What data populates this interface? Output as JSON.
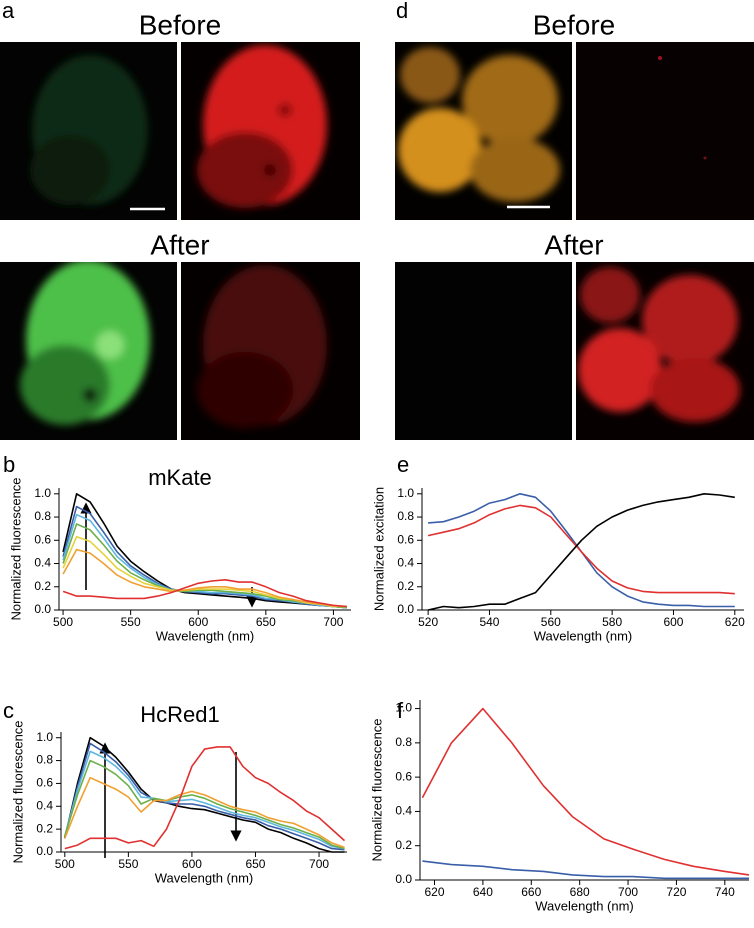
{
  "images": {
    "panel_a": "a",
    "panel_d": "d",
    "before_a": "Before",
    "after_a": "After",
    "before_d": "Before",
    "after_d": "After"
  },
  "chart_data": [
    {
      "type": "line",
      "panel_label": "b",
      "title": "mKate",
      "x_label": "Wavelength (nm)",
      "y_label": "Normalized fluorescence",
      "x": [
        500,
        510,
        520,
        530,
        540,
        550,
        560,
        570,
        580,
        590,
        600,
        610,
        620,
        630,
        640,
        650,
        660,
        670,
        680,
        690,
        700,
        710
      ],
      "series": [
        {
          "color": "#000000",
          "values": [
            0.5,
            1.0,
            0.93,
            0.75,
            0.55,
            0.42,
            0.33,
            0.25,
            0.18,
            0.15,
            0.14,
            0.13,
            0.12,
            0.11,
            0.1,
            0.08,
            0.07,
            0.06,
            0.05,
            0.04,
            0.03,
            0.02
          ]
        },
        {
          "color": "#3a5fa8",
          "values": [
            0.46,
            0.89,
            0.83,
            0.67,
            0.5,
            0.38,
            0.3,
            0.23,
            0.18,
            0.16,
            0.15,
            0.14,
            0.14,
            0.13,
            0.12,
            0.09,
            0.08,
            0.07,
            0.05,
            0.04,
            0.03,
            0.02
          ]
        },
        {
          "color": "#5fb7e0",
          "values": [
            0.43,
            0.82,
            0.77,
            0.62,
            0.46,
            0.36,
            0.28,
            0.22,
            0.17,
            0.16,
            0.16,
            0.15,
            0.15,
            0.14,
            0.13,
            0.1,
            0.09,
            0.07,
            0.06,
            0.04,
            0.03,
            0.02
          ]
        },
        {
          "color": "#6bb04a",
          "values": [
            0.4,
            0.74,
            0.69,
            0.56,
            0.42,
            0.32,
            0.26,
            0.21,
            0.17,
            0.16,
            0.17,
            0.17,
            0.16,
            0.15,
            0.14,
            0.12,
            0.09,
            0.08,
            0.06,
            0.05,
            0.03,
            0.02
          ]
        },
        {
          "color": "#e6d23a",
          "values": [
            0.36,
            0.63,
            0.59,
            0.48,
            0.36,
            0.29,
            0.23,
            0.2,
            0.17,
            0.17,
            0.18,
            0.18,
            0.18,
            0.17,
            0.16,
            0.13,
            0.1,
            0.09,
            0.06,
            0.05,
            0.03,
            0.03
          ]
        },
        {
          "color": "#f0a030",
          "values": [
            0.31,
            0.52,
            0.49,
            0.4,
            0.3,
            0.24,
            0.2,
            0.18,
            0.16,
            0.17,
            0.19,
            0.2,
            0.2,
            0.18,
            0.18,
            0.15,
            0.11,
            0.09,
            0.07,
            0.05,
            0.04,
            0.03
          ]
        },
        {
          "color": "#e03030",
          "values": [
            0.16,
            0.12,
            0.12,
            0.11,
            0.1,
            0.1,
            0.1,
            0.12,
            0.15,
            0.19,
            0.23,
            0.25,
            0.26,
            0.24,
            0.24,
            0.2,
            0.15,
            0.12,
            0.08,
            0.06,
            0.04,
            0.03
          ]
        }
      ],
      "xlim": [
        497,
        713
      ],
      "xticks": [
        500,
        550,
        600,
        650,
        700
      ],
      "ylim": [
        0,
        1.05
      ],
      "yticks": [
        {
          "value": 0,
          "label": "0.0"
        },
        0.2,
        0.4,
        0.6,
        0.8,
        {
          "value": 1,
          "label": "1.0"
        }
      ]
    },
    {
      "type": "line",
      "panel_label": "c",
      "title": "HcRed1",
      "x_label": "Wavelength (nm)",
      "y_label": "Normalized fluorescence",
      "x": [
        500,
        510,
        520,
        530,
        540,
        550,
        560,
        570,
        580,
        590,
        600,
        610,
        620,
        630,
        640,
        650,
        660,
        670,
        680,
        690,
        700,
        710,
        720
      ],
      "series": [
        {
          "color": "#000000",
          "values": [
            0.12,
            0.6,
            1.0,
            0.93,
            0.83,
            0.7,
            0.55,
            0.45,
            0.43,
            0.4,
            0.38,
            0.37,
            0.34,
            0.31,
            0.28,
            0.26,
            0.2,
            0.17,
            0.12,
            0.08,
            0.03,
            0.0,
            0.0
          ]
        },
        {
          "color": "#3a5fa8",
          "values": [
            0.13,
            0.57,
            0.95,
            0.88,
            0.79,
            0.67,
            0.52,
            0.46,
            0.43,
            0.42,
            0.42,
            0.4,
            0.36,
            0.33,
            0.3,
            0.28,
            0.23,
            0.2,
            0.16,
            0.12,
            0.08,
            0.03,
            0.02
          ]
        },
        {
          "color": "#5fb7e0",
          "values": [
            0.14,
            0.54,
            0.88,
            0.83,
            0.75,
            0.64,
            0.48,
            0.47,
            0.44,
            0.45,
            0.46,
            0.43,
            0.39,
            0.35,
            0.32,
            0.3,
            0.26,
            0.22,
            0.19,
            0.15,
            0.11,
            0.05,
            0.03
          ]
        },
        {
          "color": "#6bb04a",
          "values": [
            0.14,
            0.5,
            0.8,
            0.75,
            0.68,
            0.58,
            0.42,
            0.47,
            0.45,
            0.48,
            0.5,
            0.47,
            0.42,
            0.38,
            0.35,
            0.32,
            0.28,
            0.24,
            0.21,
            0.17,
            0.13,
            0.06,
            0.03
          ]
        },
        {
          "color": "#f0a030",
          "values": [
            0.12,
            0.4,
            0.65,
            0.6,
            0.55,
            0.48,
            0.35,
            0.45,
            0.45,
            0.5,
            0.53,
            0.5,
            0.45,
            0.4,
            0.37,
            0.35,
            0.3,
            0.27,
            0.25,
            0.2,
            0.15,
            0.08,
            0.04
          ]
        },
        {
          "color": "#e03030",
          "values": [
            0.03,
            0.06,
            0.12,
            0.12,
            0.12,
            0.08,
            0.1,
            0.05,
            0.2,
            0.45,
            0.75,
            0.9,
            0.92,
            0.92,
            0.75,
            0.65,
            0.6,
            0.52,
            0.45,
            0.36,
            0.3,
            0.2,
            0.1
          ]
        }
      ],
      "xlim": [
        497,
        722
      ],
      "xticks": [
        500,
        550,
        600,
        650,
        700
      ],
      "ylim": [
        0,
        1.05
      ],
      "yticks": [
        {
          "value": 0,
          "label": "0.0"
        },
        0.2,
        0.4,
        0.6,
        0.8,
        {
          "value": 1,
          "label": "1.0"
        }
      ]
    },
    {
      "type": "line",
      "panel_label": "e",
      "x_label": "Wavelength (nm)",
      "y_label": "Normalized excitation",
      "x": [
        520,
        525,
        530,
        535,
        540,
        545,
        550,
        555,
        560,
        565,
        570,
        575,
        580,
        585,
        590,
        595,
        600,
        605,
        610,
        615,
        620
      ],
      "series": [
        {
          "color": "#3a5fa8",
          "values": [
            0.75,
            0.76,
            0.8,
            0.85,
            0.92,
            0.95,
            1.0,
            0.97,
            0.85,
            0.68,
            0.5,
            0.32,
            0.2,
            0.12,
            0.07,
            0.05,
            0.04,
            0.04,
            0.03,
            0.03,
            0.03
          ]
        },
        {
          "color": "#e03030",
          "values": [
            0.64,
            0.67,
            0.7,
            0.75,
            0.82,
            0.87,
            0.9,
            0.88,
            0.8,
            0.65,
            0.5,
            0.36,
            0.25,
            0.19,
            0.16,
            0.15,
            0.15,
            0.15,
            0.15,
            0.15,
            0.14
          ]
        },
        {
          "color": "#000000",
          "values": [
            0.0,
            0.03,
            0.02,
            0.03,
            0.05,
            0.05,
            0.1,
            0.15,
            0.3,
            0.45,
            0.6,
            0.72,
            0.8,
            0.86,
            0.9,
            0.93,
            0.95,
            0.97,
            1.0,
            0.99,
            0.97
          ]
        }
      ],
      "xlim": [
        518,
        623
      ],
      "xticks": [
        520,
        540,
        560,
        580,
        600,
        620
      ],
      "ylim": [
        0,
        1.05
      ],
      "yticks": [
        {
          "value": 0,
          "label": "0.0"
        },
        0.2,
        0.4,
        0.6,
        0.8,
        {
          "value": 1,
          "label": "1.0"
        }
      ]
    },
    {
      "type": "line",
      "panel_label": "f",
      "x_label": "Wavelength (nm)",
      "y_label": "Normalized fluorescence",
      "x": [
        615,
        627,
        640,
        652,
        665,
        677,
        690,
        702,
        715,
        727,
        740,
        750
      ],
      "series": [
        {
          "color": "#e03030",
          "values": [
            0.48,
            0.8,
            1.0,
            0.8,
            0.55,
            0.37,
            0.24,
            0.18,
            0.12,
            0.08,
            0.05,
            0.03
          ]
        },
        {
          "color": "#3a5fa8",
          "values": [
            0.11,
            0.09,
            0.08,
            0.06,
            0.05,
            0.03,
            0.02,
            0.02,
            0.01,
            0.01,
            0.01,
            0.01
          ]
        }
      ],
      "xlim": [
        614,
        750
      ],
      "xticks": [
        620,
        640,
        660,
        680,
        700,
        720,
        740
      ],
      "ylim": [
        0,
        1.05
      ],
      "yticks": [
        {
          "value": 0,
          "label": "0.0"
        },
        0.2,
        0.4,
        0.6,
        0.8,
        {
          "value": 1,
          "label": "1.0"
        }
      ]
    }
  ]
}
